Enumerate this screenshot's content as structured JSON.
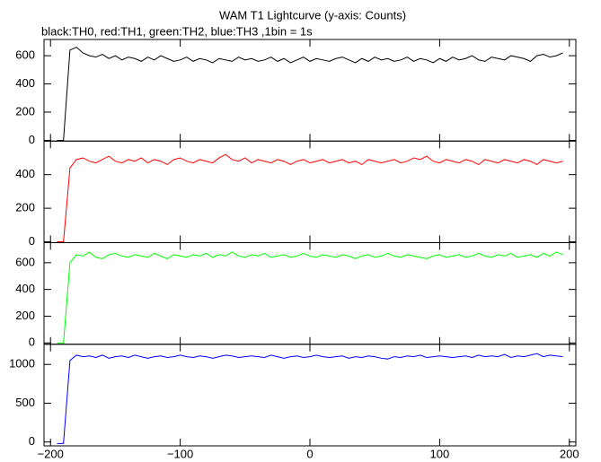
{
  "chart_data": [
    {
      "type": "line",
      "title": "WAM T1 Lightcurve (y-axis: Counts)",
      "subtitle": "black:TH0, red:TH1, green:TH2, blue:TH3 ,1bin = 1s",
      "x": [
        -195,
        -190,
        -185,
        -180,
        -175,
        -170,
        -165,
        -160,
        -155,
        -150,
        -145,
        -140,
        -135,
        -130,
        -125,
        -120,
        -115,
        -110,
        -105,
        -100,
        -95,
        -90,
        -85,
        -80,
        -75,
        -70,
        -65,
        -60,
        -55,
        -50,
        -45,
        -40,
        -35,
        -30,
        -25,
        -20,
        -15,
        -10,
        -5,
        0,
        5,
        10,
        15,
        20,
        25,
        30,
        35,
        40,
        45,
        50,
        55,
        60,
        65,
        70,
        75,
        80,
        85,
        90,
        95,
        100,
        105,
        110,
        115,
        120,
        125,
        130,
        135,
        140,
        145,
        150,
        155,
        160,
        165,
        170,
        175,
        180,
        185,
        190,
        195
      ],
      "values": [
        0,
        0,
        640,
        660,
        620,
        600,
        590,
        610,
        580,
        600,
        570,
        590,
        580,
        560,
        590,
        570,
        600,
        580,
        560,
        570,
        590,
        560,
        580,
        570,
        550,
        580,
        570,
        560,
        590,
        570,
        580,
        560,
        570,
        590,
        560,
        580,
        550,
        570,
        590,
        560,
        580,
        570,
        560,
        580,
        590,
        570,
        550,
        580,
        560,
        590,
        570,
        580,
        560,
        570,
        590,
        560,
        580,
        570,
        550,
        580,
        560,
        590,
        570,
        580,
        600,
        570,
        560,
        590,
        580,
        570,
        600,
        590,
        580,
        560,
        600,
        610,
        590,
        600,
        620
      ],
      "color": "#000000",
      "xlim": [
        -205,
        205
      ],
      "ylim": [
        -5,
        715
      ],
      "yticks": [
        0,
        200,
        400,
        600
      ]
    },
    {
      "type": "line",
      "x": [
        -195,
        -190,
        -185,
        -180,
        -175,
        -170,
        -165,
        -160,
        -155,
        -150,
        -145,
        -140,
        -135,
        -130,
        -125,
        -120,
        -115,
        -110,
        -105,
        -100,
        -95,
        -90,
        -85,
        -80,
        -75,
        -70,
        -65,
        -60,
        -55,
        -50,
        -45,
        -40,
        -35,
        -30,
        -25,
        -20,
        -15,
        -10,
        -5,
        0,
        5,
        10,
        15,
        20,
        25,
        30,
        35,
        40,
        45,
        50,
        55,
        60,
        65,
        70,
        75,
        80,
        85,
        90,
        95,
        100,
        105,
        110,
        115,
        120,
        125,
        130,
        135,
        140,
        145,
        150,
        155,
        160,
        165,
        170,
        175,
        180,
        185,
        190,
        195
      ],
      "values": [
        0,
        0,
        440,
        490,
        500,
        480,
        470,
        490,
        510,
        480,
        470,
        490,
        480,
        500,
        470,
        490,
        480,
        460,
        490,
        500,
        480,
        470,
        490,
        480,
        470,
        500,
        520,
        490,
        480,
        500,
        470,
        490,
        480,
        470,
        490,
        480,
        460,
        480,
        490,
        470,
        480,
        490,
        470,
        480,
        490,
        470,
        480,
        460,
        490,
        480,
        470,
        480,
        490,
        470,
        480,
        500,
        490,
        510,
        480,
        470,
        490,
        480,
        470,
        490,
        480,
        460,
        490,
        480,
        470,
        490,
        480,
        470,
        490,
        480,
        460,
        490,
        480,
        470,
        480
      ],
      "color": "#ff0000",
      "xlim": [
        -205,
        205
      ],
      "ylim": [
        -5,
        600
      ],
      "yticks": [
        0,
        200,
        400
      ]
    },
    {
      "type": "line",
      "x": [
        -195,
        -190,
        -185,
        -180,
        -175,
        -170,
        -165,
        -160,
        -155,
        -150,
        -145,
        -140,
        -135,
        -130,
        -125,
        -120,
        -115,
        -110,
        -105,
        -100,
        -95,
        -90,
        -85,
        -80,
        -75,
        -70,
        -65,
        -60,
        -55,
        -50,
        -45,
        -40,
        -35,
        -30,
        -25,
        -20,
        -15,
        -10,
        -5,
        0,
        5,
        10,
        15,
        20,
        25,
        30,
        35,
        40,
        45,
        50,
        55,
        60,
        65,
        70,
        75,
        80,
        85,
        90,
        95,
        100,
        105,
        110,
        115,
        120,
        125,
        130,
        135,
        140,
        145,
        150,
        155,
        160,
        165,
        170,
        175,
        180,
        185,
        190,
        195
      ],
      "values": [
        0,
        0,
        600,
        660,
        650,
        680,
        640,
        630,
        660,
        670,
        650,
        640,
        660,
        650,
        640,
        670,
        650,
        630,
        660,
        650,
        640,
        660,
        650,
        670,
        640,
        660,
        650,
        680,
        650,
        640,
        660,
        650,
        670,
        640,
        650,
        660,
        640,
        650,
        670,
        650,
        640,
        660,
        650,
        640,
        660,
        650,
        630,
        650,
        660,
        640,
        650,
        670,
        650,
        640,
        660,
        650,
        640,
        630,
        650,
        660,
        640,
        650,
        660,
        640,
        650,
        670,
        650,
        640,
        660,
        650,
        670,
        640,
        650,
        660,
        640,
        670,
        650,
        680,
        660
      ],
      "color": "#00ff00",
      "xlim": [
        -205,
        205
      ],
      "ylim": [
        -10,
        750
      ],
      "yticks": [
        0,
        200,
        400,
        600
      ]
    },
    {
      "type": "line",
      "x": [
        -195,
        -190,
        -185,
        -180,
        -175,
        -170,
        -165,
        -160,
        -155,
        -150,
        -145,
        -140,
        -135,
        -130,
        -125,
        -120,
        -115,
        -110,
        -105,
        -100,
        -95,
        -90,
        -85,
        -80,
        -75,
        -70,
        -65,
        -60,
        -55,
        -50,
        -45,
        -40,
        -35,
        -30,
        -25,
        -20,
        -15,
        -10,
        -5,
        0,
        5,
        10,
        15,
        20,
        25,
        30,
        35,
        40,
        45,
        50,
        55,
        60,
        65,
        70,
        75,
        80,
        85,
        90,
        95,
        100,
        105,
        110,
        115,
        120,
        125,
        130,
        135,
        140,
        145,
        150,
        155,
        160,
        165,
        170,
        175,
        180,
        185,
        190,
        195
      ],
      "values": [
        -20,
        -20,
        1050,
        1120,
        1100,
        1110,
        1090,
        1120,
        1080,
        1100,
        1110,
        1090,
        1120,
        1100,
        1080,
        1100,
        1110,
        1090,
        1100,
        1120,
        1100,
        1090,
        1110,
        1100,
        1080,
        1100,
        1120,
        1110,
        1090,
        1100,
        1110,
        1100,
        1090,
        1120,
        1100,
        1080,
        1100,
        1110,
        1090,
        1100,
        1120,
        1100,
        1090,
        1100,
        1110,
        1080,
        1100,
        1090,
        1110,
        1100,
        1080,
        1070,
        1100,
        1090,
        1110,
        1100,
        1120,
        1090,
        1100,
        1110,
        1100,
        1090,
        1100,
        1110,
        1090,
        1120,
        1100,
        1110,
        1100,
        1130,
        1090,
        1110,
        1100,
        1120,
        1140,
        1100,
        1120,
        1110,
        1100
      ],
      "color": "#0000ff",
      "xlim": [
        -205,
        205
      ],
      "ylim": [
        -50,
        1260
      ],
      "yticks": [
        0,
        500,
        1000
      ],
      "xticks": [
        {
          "value": -200,
          "label": "−200"
        },
        {
          "value": -100,
          "label": "−100"
        },
        0,
        100,
        200
      ]
    }
  ]
}
